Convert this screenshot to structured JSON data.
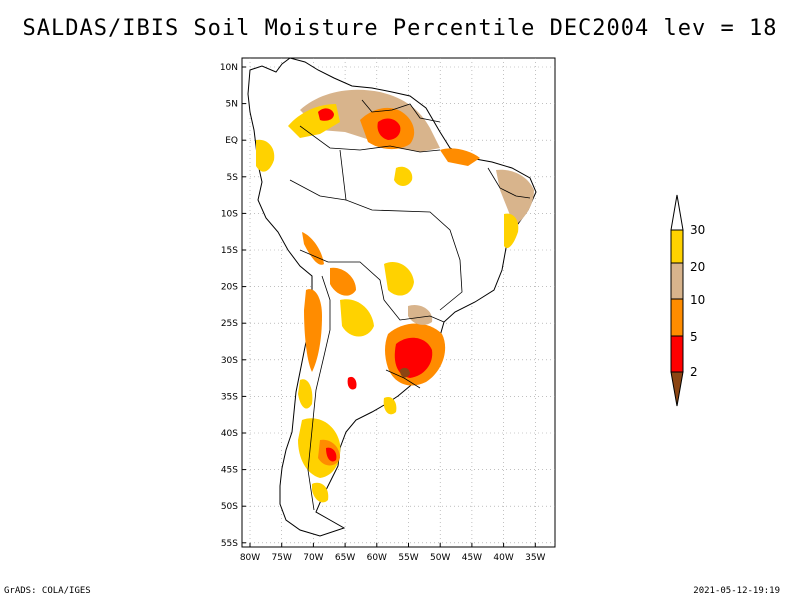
{
  "title": "SALDAS/IBIS Soil Moisture Percentile DEC2004 lev = 18",
  "lat_labels": [
    "10N",
    "5N",
    "EQ",
    "5S",
    "10S",
    "15S",
    "20S",
    "25S",
    "30S",
    "35S",
    "40S",
    "45S",
    "50S",
    "55S"
  ],
  "lon_labels": [
    "80W",
    "75W",
    "70W",
    "65W",
    "60W",
    "55W",
    "50W",
    "45W",
    "40W",
    "35W"
  ],
  "colorbar": {
    "labels": [
      "30",
      "20",
      "10",
      "5",
      "2"
    ],
    "colors": {
      "above": "#ffffff",
      "c30": "#ffd200",
      "c20": "#d8b48c",
      "c10": "#ff8c00",
      "c5": "#ff0000",
      "below": "#8b4513"
    }
  },
  "footer": {
    "left": "GrADS: COLA/IGES",
    "right": "2021-05-12-19:19"
  }
}
